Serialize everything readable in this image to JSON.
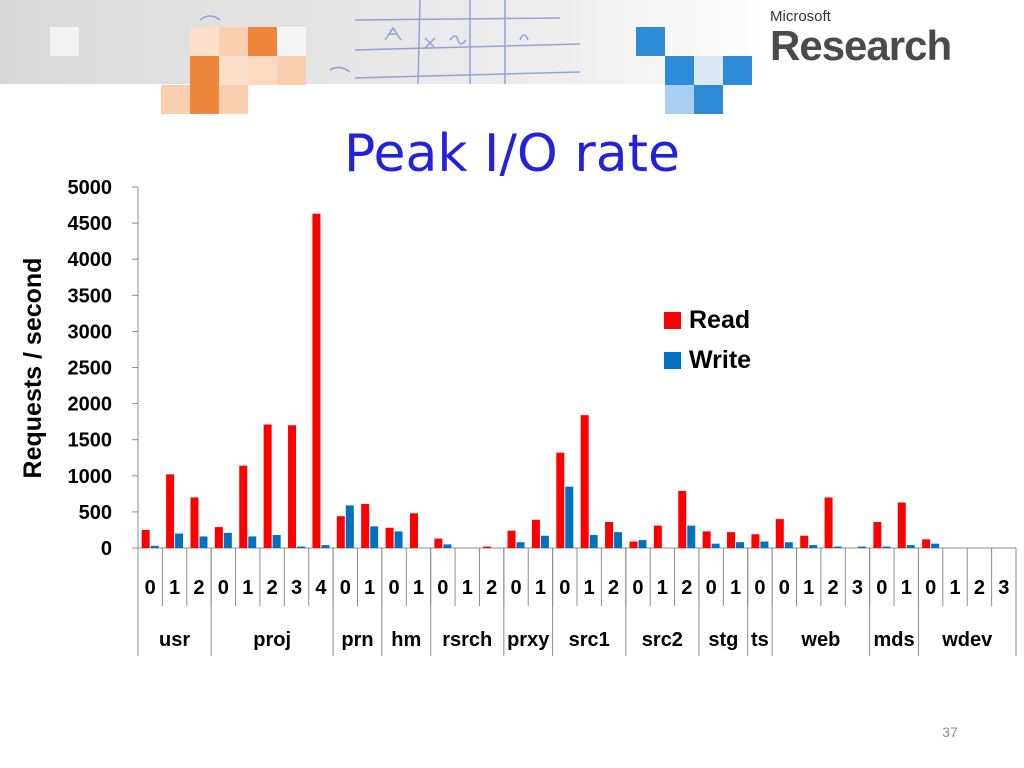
{
  "header": {
    "brand_small": "Microsoft",
    "brand_large": "Research"
  },
  "page_number": "37",
  "colors": {
    "read": "#ff0000",
    "write": "#0070c0",
    "title": "#2222dd"
  },
  "chart_data": {
    "type": "bar",
    "title": "Peak I/O rate",
    "ylabel": "Requests / second",
    "xlabel": "",
    "ylim": [
      0,
      5000
    ],
    "yticks": [
      0,
      500,
      1000,
      1500,
      2000,
      2500,
      3000,
      3500,
      4000,
      4500,
      5000
    ],
    "legend": "right",
    "grid": false,
    "groups": [
      {
        "name": "usr",
        "volumes": [
          "0",
          "1",
          "2"
        ]
      },
      {
        "name": "proj",
        "volumes": [
          "0",
          "1",
          "2",
          "3",
          "4"
        ]
      },
      {
        "name": "prn",
        "volumes": [
          "0",
          "1"
        ]
      },
      {
        "name": "hm",
        "volumes": [
          "0",
          "1"
        ]
      },
      {
        "name": "rsrch",
        "volumes": [
          "0",
          "1",
          "2"
        ]
      },
      {
        "name": "prxy",
        "volumes": [
          "0",
          "1"
        ]
      },
      {
        "name": "src1",
        "volumes": [
          "0",
          "1",
          "2"
        ]
      },
      {
        "name": "src2",
        "volumes": [
          "0",
          "1",
          "2"
        ]
      },
      {
        "name": "stg",
        "volumes": [
          "0",
          "1"
        ]
      },
      {
        "name": "ts",
        "volumes": [
          "0"
        ]
      },
      {
        "name": "web",
        "volumes": [
          "0",
          "1",
          "2",
          "3"
        ]
      },
      {
        "name": "mds",
        "volumes": [
          "0",
          "1"
        ]
      },
      {
        "name": "wdev",
        "volumes": [
          "0",
          "1",
          "2",
          "3"
        ]
      }
    ],
    "series": [
      {
        "name": "Read",
        "values": [
          250,
          1020,
          700,
          290,
          1140,
          1710,
          1700,
          4630,
          440,
          610,
          280,
          480,
          130,
          0,
          20,
          240,
          390,
          1320,
          1840,
          360,
          90,
          310,
          790,
          230,
          220,
          190,
          400,
          170,
          700,
          0,
          360,
          630,
          120,
          0,
          0,
          0
        ]
      },
      {
        "name": "Write",
        "values": [
          30,
          200,
          160,
          210,
          160,
          180,
          20,
          40,
          590,
          300,
          230,
          0,
          50,
          0,
          0,
          80,
          170,
          850,
          180,
          220,
          110,
          0,
          310,
          60,
          80,
          90,
          80,
          40,
          20,
          20,
          20,
          40,
          60,
          0,
          0,
          0
        ]
      }
    ]
  }
}
